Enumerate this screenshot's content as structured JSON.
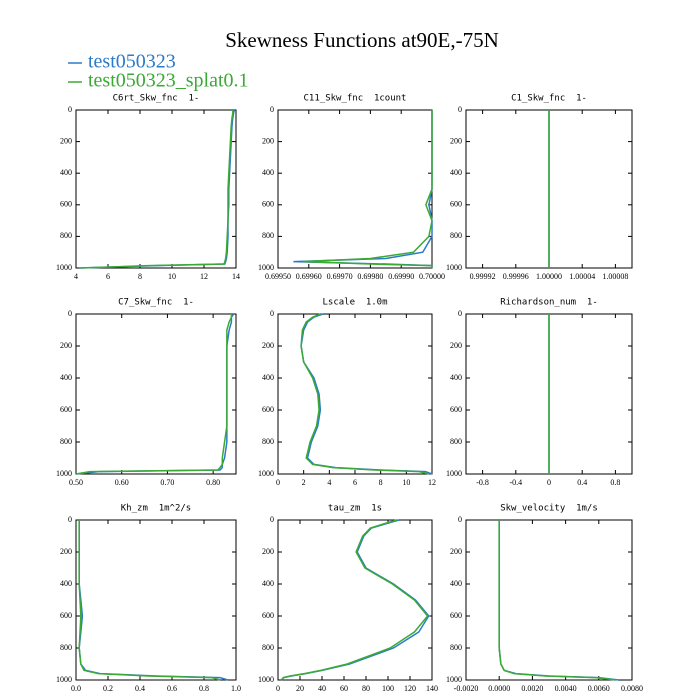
{
  "title": "Skewness Functions at90E,-75N",
  "chart_data": [
    {
      "type": "line",
      "title": "C6rt_Skw_fnc  1-",
      "y": [
        0,
        20,
        50,
        100,
        200,
        300,
        400,
        500,
        600,
        700,
        800,
        900,
        940,
        960,
        975,
        985,
        1000
      ],
      "series": [
        {
          "name": "test050323",
          "color": "#2b7bc8",
          "values": [
            13.9,
            13.85,
            13.8,
            13.75,
            13.7,
            13.65,
            13.6,
            13.55,
            13.55,
            13.5,
            13.5,
            13.45,
            13.4,
            13.35,
            13.3,
            9,
            4.2
          ]
        },
        {
          "name": "test050323_splat0.1",
          "color": "#3aaa35",
          "values": [
            13.8,
            13.8,
            13.75,
            13.7,
            13.65,
            13.6,
            13.55,
            13.5,
            13.5,
            13.5,
            13.45,
            13.4,
            13.35,
            13.3,
            13.25,
            8.5,
            4.3
          ]
        }
      ],
      "xlim": [
        4,
        14
      ],
      "xticks": [
        4,
        6,
        8,
        10,
        12,
        14
      ],
      "ylim": [
        1000,
        0
      ],
      "yticks": [
        0,
        200,
        400,
        600,
        800,
        1000
      ]
    },
    {
      "type": "line",
      "title": "C11_Skw_fnc  1count",
      "y": [
        0,
        20,
        50,
        100,
        200,
        300,
        400,
        500,
        600,
        700,
        800,
        900,
        940,
        960,
        975,
        985,
        1000
      ],
      "series": [
        {
          "name": "test050323",
          "color": "#2b7bc8",
          "values": [
            0.7,
            0.7,
            0.7,
            0.7,
            0.7,
            0.7,
            0.7,
            0.7,
            0.69999,
            0.7,
            0.7,
            0.69997,
            0.69985,
            0.69955,
            0.69985,
            0.7,
            0.7
          ]
        },
        {
          "name": "test050323_splat0.1",
          "color": "#3aaa35",
          "values": [
            0.7,
            0.7,
            0.7,
            0.7,
            0.7,
            0.7,
            0.7,
            0.7,
            0.69998,
            0.7,
            0.69999,
            0.69994,
            0.6998,
            0.69958,
            0.6998,
            0.7,
            0.7
          ]
        }
      ],
      "xlim": [
        0.6995,
        0.7
      ],
      "xticks": [
        {
          "value": 0.6995,
          "label": "0.69950"
        },
        {
          "value": 0.6996,
          "label": "0.69960"
        },
        {
          "value": 0.6997,
          "label": "0.69970"
        },
        {
          "value": 0.6998,
          "label": "0.69980"
        },
        {
          "value": 0.6999,
          "label": "0.69990"
        },
        {
          "value": 0.7,
          "label": "0.70000"
        }
      ],
      "ylim": [
        1000,
        0
      ],
      "yticks": [
        0,
        200,
        400,
        600,
        800,
        1000
      ]
    },
    {
      "type": "line",
      "title": "C1_Skw_fnc  1-",
      "y": [
        0,
        20,
        50,
        100,
        200,
        300,
        400,
        500,
        600,
        700,
        800,
        900,
        940,
        960,
        975,
        985,
        1000
      ],
      "series": [
        {
          "name": "test050323",
          "color": "#2b7bc8",
          "values": [
            1,
            1,
            1,
            1,
            1,
            1,
            1,
            1,
            1,
            1,
            1,
            1,
            1,
            1,
            1,
            1,
            1
          ]
        },
        {
          "name": "test050323_splat0.1",
          "color": "#3aaa35",
          "values": [
            1,
            1,
            1,
            1,
            1,
            1,
            1,
            1,
            1,
            1,
            1,
            1,
            1,
            1,
            1,
            1,
            1
          ]
        }
      ],
      "xlim": [
        0.9999,
        1.0001
      ],
      "xticks": [
        {
          "value": 0.99992,
          "label": "0.99992"
        },
        {
          "value": 0.99996,
          "label": "0.99996"
        },
        {
          "value": 1,
          "label": "1.00000"
        },
        {
          "value": 1.00004,
          "label": "1.00004"
        },
        {
          "value": 1.00008,
          "label": "1.00008"
        }
      ],
      "ylim": [
        1000,
        0
      ],
      "yticks": [
        0,
        200,
        400,
        600,
        800,
        1000
      ]
    },
    {
      "type": "line",
      "title": "C7_Skw_fnc  1-",
      "y": [
        0,
        20,
        50,
        100,
        200,
        300,
        400,
        500,
        600,
        700,
        800,
        900,
        940,
        960,
        975,
        985,
        1000
      ],
      "series": [
        {
          "name": "test050323",
          "color": "#2b7bc8",
          "values": [
            0.845,
            0.84,
            0.84,
            0.835,
            0.83,
            0.83,
            0.83,
            0.83,
            0.83,
            0.83,
            0.83,
            0.825,
            0.82,
            0.82,
            0.815,
            0.55,
            0.5
          ]
        },
        {
          "name": "test050323_splat0.1",
          "color": "#3aaa35",
          "values": [
            0.84,
            0.84,
            0.835,
            0.83,
            0.83,
            0.83,
            0.83,
            0.83,
            0.83,
            0.83,
            0.825,
            0.82,
            0.82,
            0.815,
            0.81,
            0.53,
            0.5
          ]
        }
      ],
      "xlim": [
        0.5,
        0.85
      ],
      "xticks": [
        {
          "value": 0.5,
          "label": "0.50"
        },
        {
          "value": 0.6,
          "label": "0.60"
        },
        {
          "value": 0.7,
          "label": "0.70"
        },
        {
          "value": 0.8,
          "label": "0.80"
        }
      ],
      "ylim": [
        1000,
        0
      ],
      "yticks": [
        0,
        200,
        400,
        600,
        800,
        1000
      ]
    },
    {
      "type": "line",
      "title": "Lscale  1.0m",
      "y": [
        0,
        20,
        50,
        100,
        200,
        300,
        400,
        500,
        600,
        700,
        800,
        900,
        940,
        960,
        975,
        985,
        1000
      ],
      "series": [
        {
          "name": "test050323",
          "color": "#2b7bc8",
          "values": [
            3.5,
            2.8,
            2.3,
            2,
            1.8,
            2,
            2.8,
            3.2,
            3.3,
            3.1,
            2.6,
            2.3,
            2.8,
            4.5,
            8,
            11.5,
            12
          ]
        },
        {
          "name": "test050323_splat0.1",
          "color": "#3aaa35",
          "values": [
            3.3,
            2.7,
            2.2,
            1.9,
            1.8,
            2,
            2.7,
            3.1,
            3.2,
            3,
            2.5,
            2.2,
            2.7,
            4.3,
            7.5,
            11,
            11.8
          ]
        }
      ],
      "xlim": [
        0,
        12
      ],
      "xticks": [
        0,
        2,
        4,
        6,
        8,
        10,
        12
      ],
      "ylim": [
        1000,
        0
      ],
      "yticks": [
        0,
        200,
        400,
        600,
        800,
        1000
      ]
    },
    {
      "type": "line",
      "title": "Richardson_num  1-",
      "y": [
        0,
        20,
        50,
        100,
        200,
        300,
        400,
        500,
        600,
        700,
        800,
        900,
        940,
        960,
        975,
        985,
        1000
      ],
      "series": [
        {
          "name": "test050323",
          "color": "#2b7bc8",
          "values": [
            0,
            0,
            0,
            0,
            0,
            0,
            0,
            0,
            0,
            0,
            0,
            0,
            0,
            0,
            0,
            0,
            0
          ]
        },
        {
          "name": "test050323_splat0.1",
          "color": "#3aaa35",
          "values": [
            0,
            0,
            0,
            0,
            0,
            0,
            0,
            0,
            0,
            0,
            0,
            0,
            0,
            0,
            0,
            0,
            0
          ]
        }
      ],
      "xlim": [
        -1,
        1
      ],
      "xticks": [
        -0.8,
        -0.4,
        0,
        0.4,
        0.8
      ],
      "ylim": [
        1000,
        0
      ],
      "yticks": [
        0,
        200,
        400,
        600,
        800,
        1000
      ]
    },
    {
      "type": "line",
      "title": "Kh_zm  1m^2/s",
      "y": [
        0,
        20,
        50,
        100,
        200,
        300,
        400,
        500,
        600,
        700,
        800,
        900,
        940,
        960,
        975,
        985,
        1000
      ],
      "series": [
        {
          "name": "test050323",
          "color": "#2b7bc8",
          "values": [
            0.02,
            0.02,
            0.02,
            0.02,
            0.02,
            0.02,
            0.02,
            0.03,
            0.04,
            0.03,
            0.02,
            0.03,
            0.06,
            0.15,
            0.5,
            0.9,
            0.95
          ]
        },
        {
          "name": "test050323_splat0.1",
          "color": "#3aaa35",
          "values": [
            0.02,
            0.02,
            0.02,
            0.02,
            0.02,
            0.02,
            0.02,
            0.025,
            0.03,
            0.025,
            0.02,
            0.03,
            0.05,
            0.14,
            0.45,
            0.85,
            0.9
          ]
        }
      ],
      "xlim": [
        0,
        1
      ],
      "xticks": [
        {
          "value": 0,
          "label": "0.0"
        },
        0.2,
        0.4,
        0.6,
        0.8,
        {
          "value": 1,
          "label": "1.0"
        }
      ],
      "ylim": [
        1000,
        0
      ],
      "yticks": [
        0,
        200,
        400,
        600,
        800,
        1000
      ]
    },
    {
      "type": "line",
      "title": "tau_zm  1s",
      "y": [
        0,
        20,
        50,
        100,
        200,
        300,
        400,
        500,
        600,
        700,
        800,
        900,
        940,
        960,
        975,
        985,
        1000
      ],
      "series": [
        {
          "name": "test050323",
          "color": "#2b7bc8",
          "values": [
            110,
            100,
            85,
            78,
            72,
            80,
            105,
            125,
            137,
            128,
            105,
            65,
            40,
            25,
            12,
            5,
            3
          ]
        },
        {
          "name": "test050323_splat0.1",
          "color": "#3aaa35",
          "values": [
            108,
            98,
            84,
            77,
            71,
            79,
            104,
            124,
            136,
            124,
            102,
            63,
            39,
            24,
            11,
            5,
            3
          ]
        }
      ],
      "xlim": [
        0,
        140
      ],
      "xticks": [
        0,
        20,
        40,
        60,
        80,
        100,
        120,
        140
      ],
      "ylim": [
        1000,
        0
      ],
      "yticks": [
        0,
        200,
        400,
        600,
        800,
        1000
      ]
    },
    {
      "type": "line",
      "title": "Skw_velocity  1m/s",
      "y": [
        0,
        20,
        50,
        100,
        200,
        300,
        400,
        500,
        600,
        700,
        800,
        900,
        940,
        960,
        975,
        985,
        1000
      ],
      "series": [
        {
          "name": "test050323",
          "color": "#2b7bc8",
          "values": [
            0,
            0,
            0,
            0,
            0,
            0,
            0,
            0,
            0,
            0,
            0,
            0.0001,
            0.0003,
            0.001,
            0.003,
            0.006,
            0.0072
          ]
        },
        {
          "name": "test050323_splat0.1",
          "color": "#3aaa35",
          "values": [
            0,
            0,
            0,
            0,
            0,
            0,
            0,
            0,
            0,
            0,
            0,
            0.0001,
            0.0003,
            0.0009,
            0.0028,
            0.0058,
            0.007
          ]
        }
      ],
      "xlim": [
        -0.002,
        0.008
      ],
      "xticks": [
        {
          "value": -0.002,
          "label": "-0.0020"
        },
        {
          "value": 0,
          "label": "0.0000"
        },
        {
          "value": 0.002,
          "label": "0.0020"
        },
        {
          "value": 0.004,
          "label": "0.0040"
        },
        {
          "value": 0.006,
          "label": "0.0060"
        },
        {
          "value": 0.008,
          "label": "0.0080"
        }
      ],
      "ylim": [
        1000,
        0
      ],
      "yticks": [
        0,
        200,
        400,
        600,
        800,
        1000
      ]
    }
  ]
}
